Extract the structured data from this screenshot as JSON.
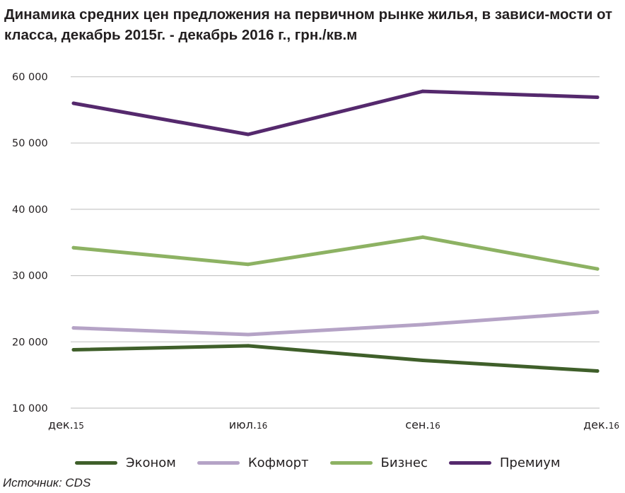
{
  "title": "Динамика средних цен предложения на первичном рынке жилья, в зависи-мости от класса, декабрь 2015г. - декабрь 2016 г., грн./кв.м",
  "source": "Источник: CDS",
  "chart_data": {
    "type": "line",
    "title": "Динамика средних цен предложения на первичном рынке жилья, в зависи-мости от класса, декабрь 2015г. - декабрь 2016 г., грн./кв.м",
    "categories": [
      {
        "month": "дек.",
        "year": "15"
      },
      {
        "month": "июл.",
        "year": "16"
      },
      {
        "month": "сен.",
        "year": "16"
      },
      {
        "month": "дек.",
        "year": "16"
      }
    ],
    "ylim": [
      10000,
      60000
    ],
    "yticks": [
      10000,
      20000,
      30000,
      40000,
      50000,
      60000
    ],
    "ytick_labels": [
      "10 000",
      "20 000",
      "30 000",
      "40 000",
      "50 000",
      "60 000"
    ],
    "grid": true,
    "legend_position": "bottom",
    "series": [
      {
        "name": "Эконом",
        "color": "#3f5f2a",
        "values": [
          18800,
          19400,
          17200,
          15600
        ]
      },
      {
        "name": "Кофморт",
        "color": "#b5a3c6",
        "values": [
          22100,
          21100,
          22600,
          24500
        ]
      },
      {
        "name": "Бизнес",
        "color": "#8db263",
        "values": [
          34200,
          31700,
          35800,
          31000
        ]
      },
      {
        "name": "Премиум",
        "color": "#55296d",
        "values": [
          56000,
          51300,
          57800,
          56900
        ]
      }
    ]
  }
}
